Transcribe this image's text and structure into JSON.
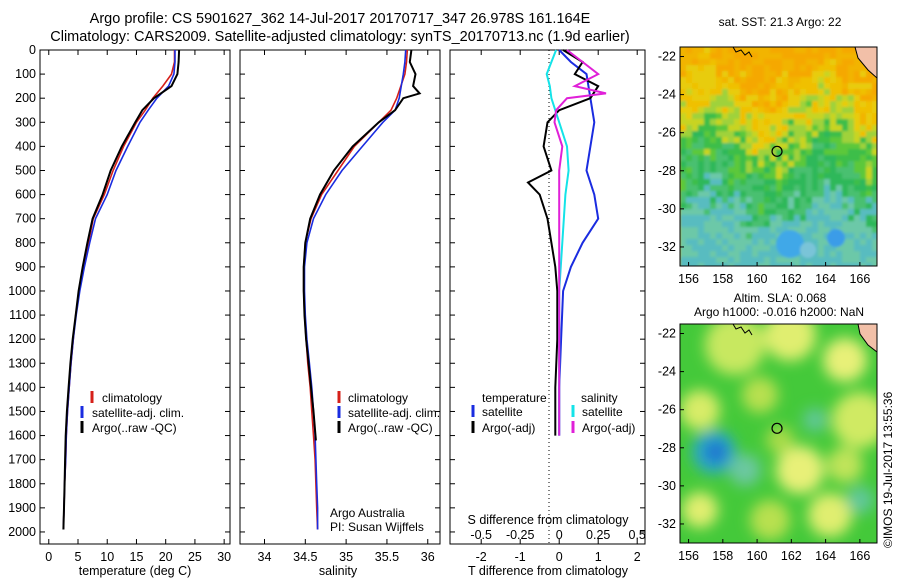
{
  "header": {
    "title_line1": "Argo profile: CS 5901627_362 14-Jul-2017 20170717_347 26.978S 161.164E",
    "title_line2": "Climatology: CARS2009. Satellite-adjusted climatology: synTS_20170713.nc (1.9d earlier)"
  },
  "colors": {
    "climatology": "#d6201a",
    "satellite": "#1a2ce0",
    "argo": "#000000",
    "salinity_satellite": "#14e3e8",
    "salinity_argo": "#e020d8"
  },
  "chart_data": [
    {
      "type": "line",
      "name": "temperature-profile",
      "xlabel": "temperature (deg C)",
      "ylabel": "",
      "xlim": [
        -1.5,
        31
      ],
      "ylim": [
        2050,
        0
      ],
      "xticks": [
        "0",
        "5",
        "10",
        "15",
        "20",
        "25",
        "30"
      ],
      "yticks": [
        "0",
        "100",
        "200",
        "300",
        "400",
        "500",
        "600",
        "700",
        "800",
        "900",
        "1000",
        "1100",
        "1200",
        "1300",
        "1400",
        "1500",
        "1600",
        "1700",
        "1800",
        "1900",
        "2000"
      ],
      "legend": {
        "placement": "lower-center",
        "entries": [
          "climatology",
          "satellite-adj. clim.",
          "Argo(..raw -QC)"
        ]
      },
      "series": [
        {
          "name": "climatology",
          "depth": [
            0,
            50,
            100,
            150,
            200,
            250,
            300,
            400,
            500,
            600,
            700,
            800,
            900,
            1000,
            1100,
            1200,
            1300,
            1400,
            1500,
            1600,
            1700,
            1800,
            1900,
            1990
          ],
          "values": [
            21.5,
            21.5,
            21.0,
            19.5,
            17.8,
            16.5,
            15.0,
            12.8,
            11.0,
            9.5,
            7.6,
            6.8,
            5.9,
            5.2,
            4.6,
            4.2,
            3.8,
            3.5,
            3.2,
            3.0,
            2.9,
            2.7,
            2.6,
            2.5
          ]
        },
        {
          "name": "satellite-adj. clim.",
          "depth": [
            0,
            50,
            100,
            150,
            200,
            250,
            300,
            400,
            500,
            600,
            700,
            800,
            900,
            1000,
            1100,
            1200,
            1300,
            1400,
            1500,
            1600,
            1700,
            1800,
            1900,
            1990
          ],
          "values": [
            21.6,
            21.6,
            21.4,
            20.5,
            18.5,
            17.0,
            15.6,
            13.5,
            11.5,
            10.0,
            8.0,
            7.0,
            6.1,
            5.3,
            4.7,
            4.2,
            3.8,
            3.5,
            3.2,
            3.0,
            2.9,
            2.7,
            2.6,
            2.5
          ]
        },
        {
          "name": "Argo(..raw -QC)",
          "depth": [
            0,
            50,
            100,
            150,
            200,
            250,
            300,
            400,
            500,
            600,
            700,
            800,
            900,
            1000,
            1100,
            1200,
            1300,
            1400,
            1500,
            1600,
            1700,
            1800,
            1900,
            1990
          ],
          "values": [
            22.3,
            22.2,
            22.0,
            21.0,
            18.0,
            16.0,
            14.8,
            12.5,
            10.6,
            9.2,
            7.5,
            6.6,
            5.8,
            5.1,
            4.6,
            4.1,
            3.7,
            3.4,
            3.1,
            2.9,
            2.8,
            2.7,
            2.6,
            2.5
          ]
        }
      ]
    },
    {
      "type": "line",
      "name": "salinity-profile",
      "xlabel": "salinity",
      "ylabel": "",
      "xlim": [
        33.7,
        36.15
      ],
      "ylim": [
        2050,
        0
      ],
      "xticks": [
        "34",
        "34.5",
        "35",
        "35.5",
        "36"
      ],
      "legend": {
        "placement": "lower-center",
        "entries": [
          "climatology",
          "satellite-adj. clim.",
          "Argo(..raw -QC)"
        ]
      },
      "annotations": [
        "Argo Australia",
        "PI: Susan Wijffels"
      ],
      "series": [
        {
          "name": "climatology",
          "depth": [
            0,
            50,
            100,
            200,
            250,
            300,
            400,
            500,
            600,
            700,
            800,
            900,
            1000,
            1100,
            1200,
            1300,
            1400,
            1500,
            1600,
            1700,
            1800,
            1900,
            1990
          ],
          "values": [
            35.75,
            35.74,
            35.72,
            35.62,
            35.55,
            35.4,
            35.1,
            34.9,
            34.7,
            34.57,
            34.5,
            34.48,
            34.48,
            34.49,
            34.51,
            34.53,
            34.56,
            34.58,
            34.6,
            34.62,
            34.63,
            34.64,
            34.65
          ]
        },
        {
          "name": "satellite-adj. clim.",
          "depth": [
            0,
            50,
            100,
            200,
            250,
            300,
            400,
            500,
            600,
            700,
            800,
            900,
            1000,
            1100,
            1200,
            1300,
            1400,
            1500,
            1600,
            1700,
            1800,
            1900,
            1990
          ],
          "values": [
            35.73,
            35.72,
            35.7,
            35.65,
            35.6,
            35.45,
            35.2,
            34.95,
            34.75,
            34.6,
            34.52,
            34.49,
            34.49,
            34.5,
            34.52,
            34.55,
            34.58,
            34.6,
            34.62,
            34.63,
            34.64,
            34.65,
            34.65
          ]
        },
        {
          "name": "Argo(..raw -QC)",
          "depth": [
            0,
            50,
            100,
            150,
            180,
            200,
            250,
            300,
            400,
            500,
            600,
            700,
            800,
            900,
            1000,
            1100,
            1200,
            1300,
            1400,
            1500,
            1620
          ],
          "values": [
            35.8,
            35.78,
            35.85,
            35.82,
            35.9,
            35.7,
            35.6,
            35.4,
            35.08,
            34.85,
            34.68,
            34.56,
            34.5,
            34.48,
            34.48,
            34.49,
            34.51,
            34.54,
            34.57,
            34.6,
            34.63
          ]
        }
      ]
    },
    {
      "type": "line",
      "name": "difference-profile",
      "xlabel": "T difference from climatology",
      "x2label": "S difference from climatology",
      "xlim": [
        -2.8,
        2.2
      ],
      "ylim": [
        2050,
        0
      ],
      "xticks": [
        "-2",
        "-1",
        "0",
        "1",
        "2"
      ],
      "x2ticks": [
        "-0.5",
        "-0.25",
        "0",
        "0.25",
        "0.5"
      ],
      "legend": {
        "placement": "lower-center",
        "headers": [
          "temperature",
          "salinity"
        ],
        "entries": [
          "satellite",
          "Argo(-adj)",
          "satellite",
          "Argo(-adj)"
        ]
      },
      "series": [
        {
          "name": "temperature satellite",
          "depth": [
            0,
            50,
            100,
            200,
            300,
            400,
            500,
            600,
            700,
            800,
            900,
            1000,
            1200,
            1400,
            1600
          ],
          "values": [
            0.0,
            0.3,
            0.7,
            0.8,
            0.9,
            0.8,
            0.7,
            0.9,
            1.0,
            0.6,
            0.3,
            0.1,
            0.05,
            0.0,
            0.0
          ]
        },
        {
          "name": "temperature Argo(-adj)",
          "depth": [
            0,
            50,
            100,
            150,
            200,
            250,
            300,
            400,
            500,
            550,
            600,
            700,
            800,
            900,
            1000,
            1200,
            1400,
            1600
          ],
          "values": [
            0.1,
            0.6,
            0.4,
            1.0,
            0.8,
            0.0,
            -0.3,
            -0.4,
            -0.2,
            -0.8,
            -0.5,
            -0.3,
            -0.2,
            -0.1,
            -0.05,
            -0.05,
            -0.1,
            -0.1
          ]
        },
        {
          "name": "salinity satellite",
          "depth": [
            0,
            50,
            100,
            150,
            200,
            300,
            400,
            500,
            600,
            800,
            1000,
            1200,
            1400,
            1600
          ],
          "values": [
            -0.02,
            -0.05,
            -0.08,
            -0.06,
            -0.05,
            0.0,
            0.05,
            0.06,
            0.04,
            0.02,
            0.0,
            0.0,
            0.0,
            0.0
          ]
        },
        {
          "name": "salinity Argo(-adj)",
          "depth": [
            0,
            50,
            100,
            150,
            180,
            200,
            250,
            300,
            400,
            500,
            600,
            800,
            1000,
            1200,
            1400,
            1600
          ],
          "values": [
            0.05,
            0.15,
            0.25,
            0.1,
            0.3,
            0.05,
            -0.02,
            -0.03,
            0.02,
            0.0,
            0.0,
            0.0,
            0.0,
            0.0,
            0.0,
            0.0
          ]
        }
      ]
    },
    {
      "type": "heatmap",
      "name": "sst-map",
      "title": "sat. SST: 21.3 Argo: 22",
      "xlim": [
        155.5,
        167
      ],
      "ylim": [
        -33,
        -21.5
      ],
      "xticks": [
        "156",
        "158",
        "160",
        "162",
        "164",
        "166"
      ],
      "yticks": [
        "-22",
        "-24",
        "-26",
        "-28",
        "-30",
        "-32"
      ],
      "marker": {
        "lon": 161.164,
        "lat": -26.978
      }
    },
    {
      "type": "heatmap",
      "name": "sla-map",
      "title_line1": "Altim. SLA: 0.068",
      "title_line2": "Argo h1000: -0.016 h2000: NaN",
      "xlim": [
        155.5,
        167
      ],
      "ylim": [
        -33,
        -21.5
      ],
      "xticks": [
        "156",
        "158",
        "160",
        "162",
        "164",
        "166"
      ],
      "yticks": [
        "-22",
        "-24",
        "-26",
        "-28",
        "-30",
        "-32"
      ],
      "marker": {
        "lon": 161.164,
        "lat": -26.978
      }
    }
  ],
  "credit": "©IMOS 19-Jul-2017 13:55:36"
}
